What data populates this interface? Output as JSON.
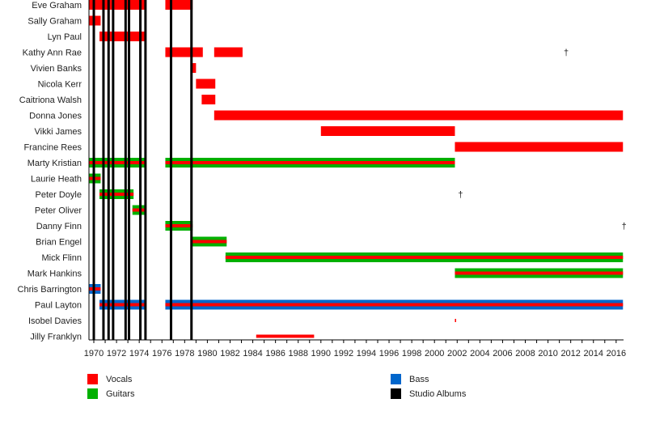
{
  "chart_data": {
    "type": "timeline",
    "title": "",
    "xlim": [
      1969.6,
      2016.6
    ],
    "ticks": [
      1970,
      1972,
      1974,
      1976,
      1978,
      1980,
      1982,
      1984,
      1986,
      1988,
      1990,
      1992,
      1994,
      1996,
      1998,
      2000,
      2002,
      2004,
      2006,
      2008,
      2010,
      2012,
      2014,
      2016
    ],
    "colors": {
      "vocals": "#ff0000",
      "guitars": "#00b000",
      "bass": "#0066cc",
      "albums": "#000000"
    },
    "albums": [
      1970.0,
      1970.85,
      1971.3,
      1971.7,
      1972.8,
      1973.1,
      1974.1,
      1974.55,
      1976.8,
      1978.6
    ],
    "members": [
      {
        "name": "Eve Graham",
        "role": "vocals",
        "periods": [
          [
            1969.6,
            1974.5
          ],
          [
            1976.3,
            1978.7
          ]
        ]
      },
      {
        "name": "Sally Graham",
        "role": "vocals",
        "periods": [
          [
            1969.6,
            1970.6
          ]
        ]
      },
      {
        "name": "Lyn Paul",
        "role": "vocals",
        "periods": [
          [
            1970.5,
            1974.5
          ]
        ]
      },
      {
        "name": "Kathy Ann Rae",
        "role": "vocals",
        "periods": [
          [
            1976.3,
            1979.6
          ],
          [
            1980.6,
            1983.1
          ]
        ],
        "death": 2011.6
      },
      {
        "name": "Vivien Banks",
        "role": "vocals",
        "periods": [
          [
            1978.6,
            1979.0
          ]
        ]
      },
      {
        "name": "Nicola Kerr",
        "role": "vocals",
        "periods": [
          [
            1979.0,
            1980.7
          ]
        ]
      },
      {
        "name": "Caitriona Walsh",
        "role": "vocals",
        "periods": [
          [
            1979.5,
            1980.7
          ]
        ]
      },
      {
        "name": "Donna Jones",
        "role": "vocals",
        "periods": [
          [
            1980.6,
            2016.6
          ]
        ]
      },
      {
        "name": "Vikki James",
        "role": "vocals",
        "periods": [
          [
            1990.0,
            2001.8
          ]
        ]
      },
      {
        "name": "Francine Rees",
        "role": "vocals",
        "periods": [
          [
            2001.8,
            2016.6
          ]
        ]
      },
      {
        "name": "Marty Kristian",
        "role": "guitars",
        "periods": [
          [
            1969.6,
            1974.5
          ],
          [
            1976.3,
            2001.8
          ]
        ]
      },
      {
        "name": "Laurie Heath",
        "role": "guitars",
        "periods": [
          [
            1969.6,
            1970.6
          ]
        ]
      },
      {
        "name": "Peter Doyle",
        "role": "guitars",
        "periods": [
          [
            1970.5,
            1973.5
          ]
        ],
        "death": 2002.3
      },
      {
        "name": "Peter Oliver",
        "role": "guitars",
        "periods": [
          [
            1973.4,
            1974.5
          ]
        ]
      },
      {
        "name": "Danny Finn",
        "role": "guitars",
        "periods": [
          [
            1976.3,
            1978.7
          ]
        ],
        "death": 2016.7
      },
      {
        "name": "Brian Engel",
        "role": "guitars",
        "periods": [
          [
            1978.6,
            1981.7
          ]
        ]
      },
      {
        "name": "Mick Flinn",
        "role": "guitars",
        "periods": [
          [
            1981.6,
            2016.6
          ]
        ]
      },
      {
        "name": "Mark Hankins",
        "role": "guitars",
        "periods": [
          [
            2001.8,
            2016.6
          ]
        ]
      },
      {
        "name": "Chris Barrington",
        "role": "bass",
        "periods": [
          [
            1969.6,
            1970.6
          ]
        ]
      },
      {
        "name": "Paul Layton",
        "role": "bass",
        "periods": [
          [
            1970.5,
            1974.5
          ],
          [
            1976.3,
            2016.6
          ]
        ]
      },
      {
        "name": "Isobel Davies",
        "role": "vocals",
        "periods": [
          [
            2001.8,
            2001.9
          ]
        ],
        "thin": true
      },
      {
        "name": "Jilly Franklyn",
        "role": "vocals",
        "periods": [
          [
            1984.3,
            1989.4
          ]
        ],
        "thin": true
      }
    ],
    "death_marker": "†",
    "legend": [
      {
        "key": "vocals",
        "label": "Vocals"
      },
      {
        "key": "guitars",
        "label": "Guitars"
      },
      {
        "key": "bass",
        "label": "Bass"
      },
      {
        "key": "albums",
        "label": "Studio Albums"
      }
    ]
  }
}
